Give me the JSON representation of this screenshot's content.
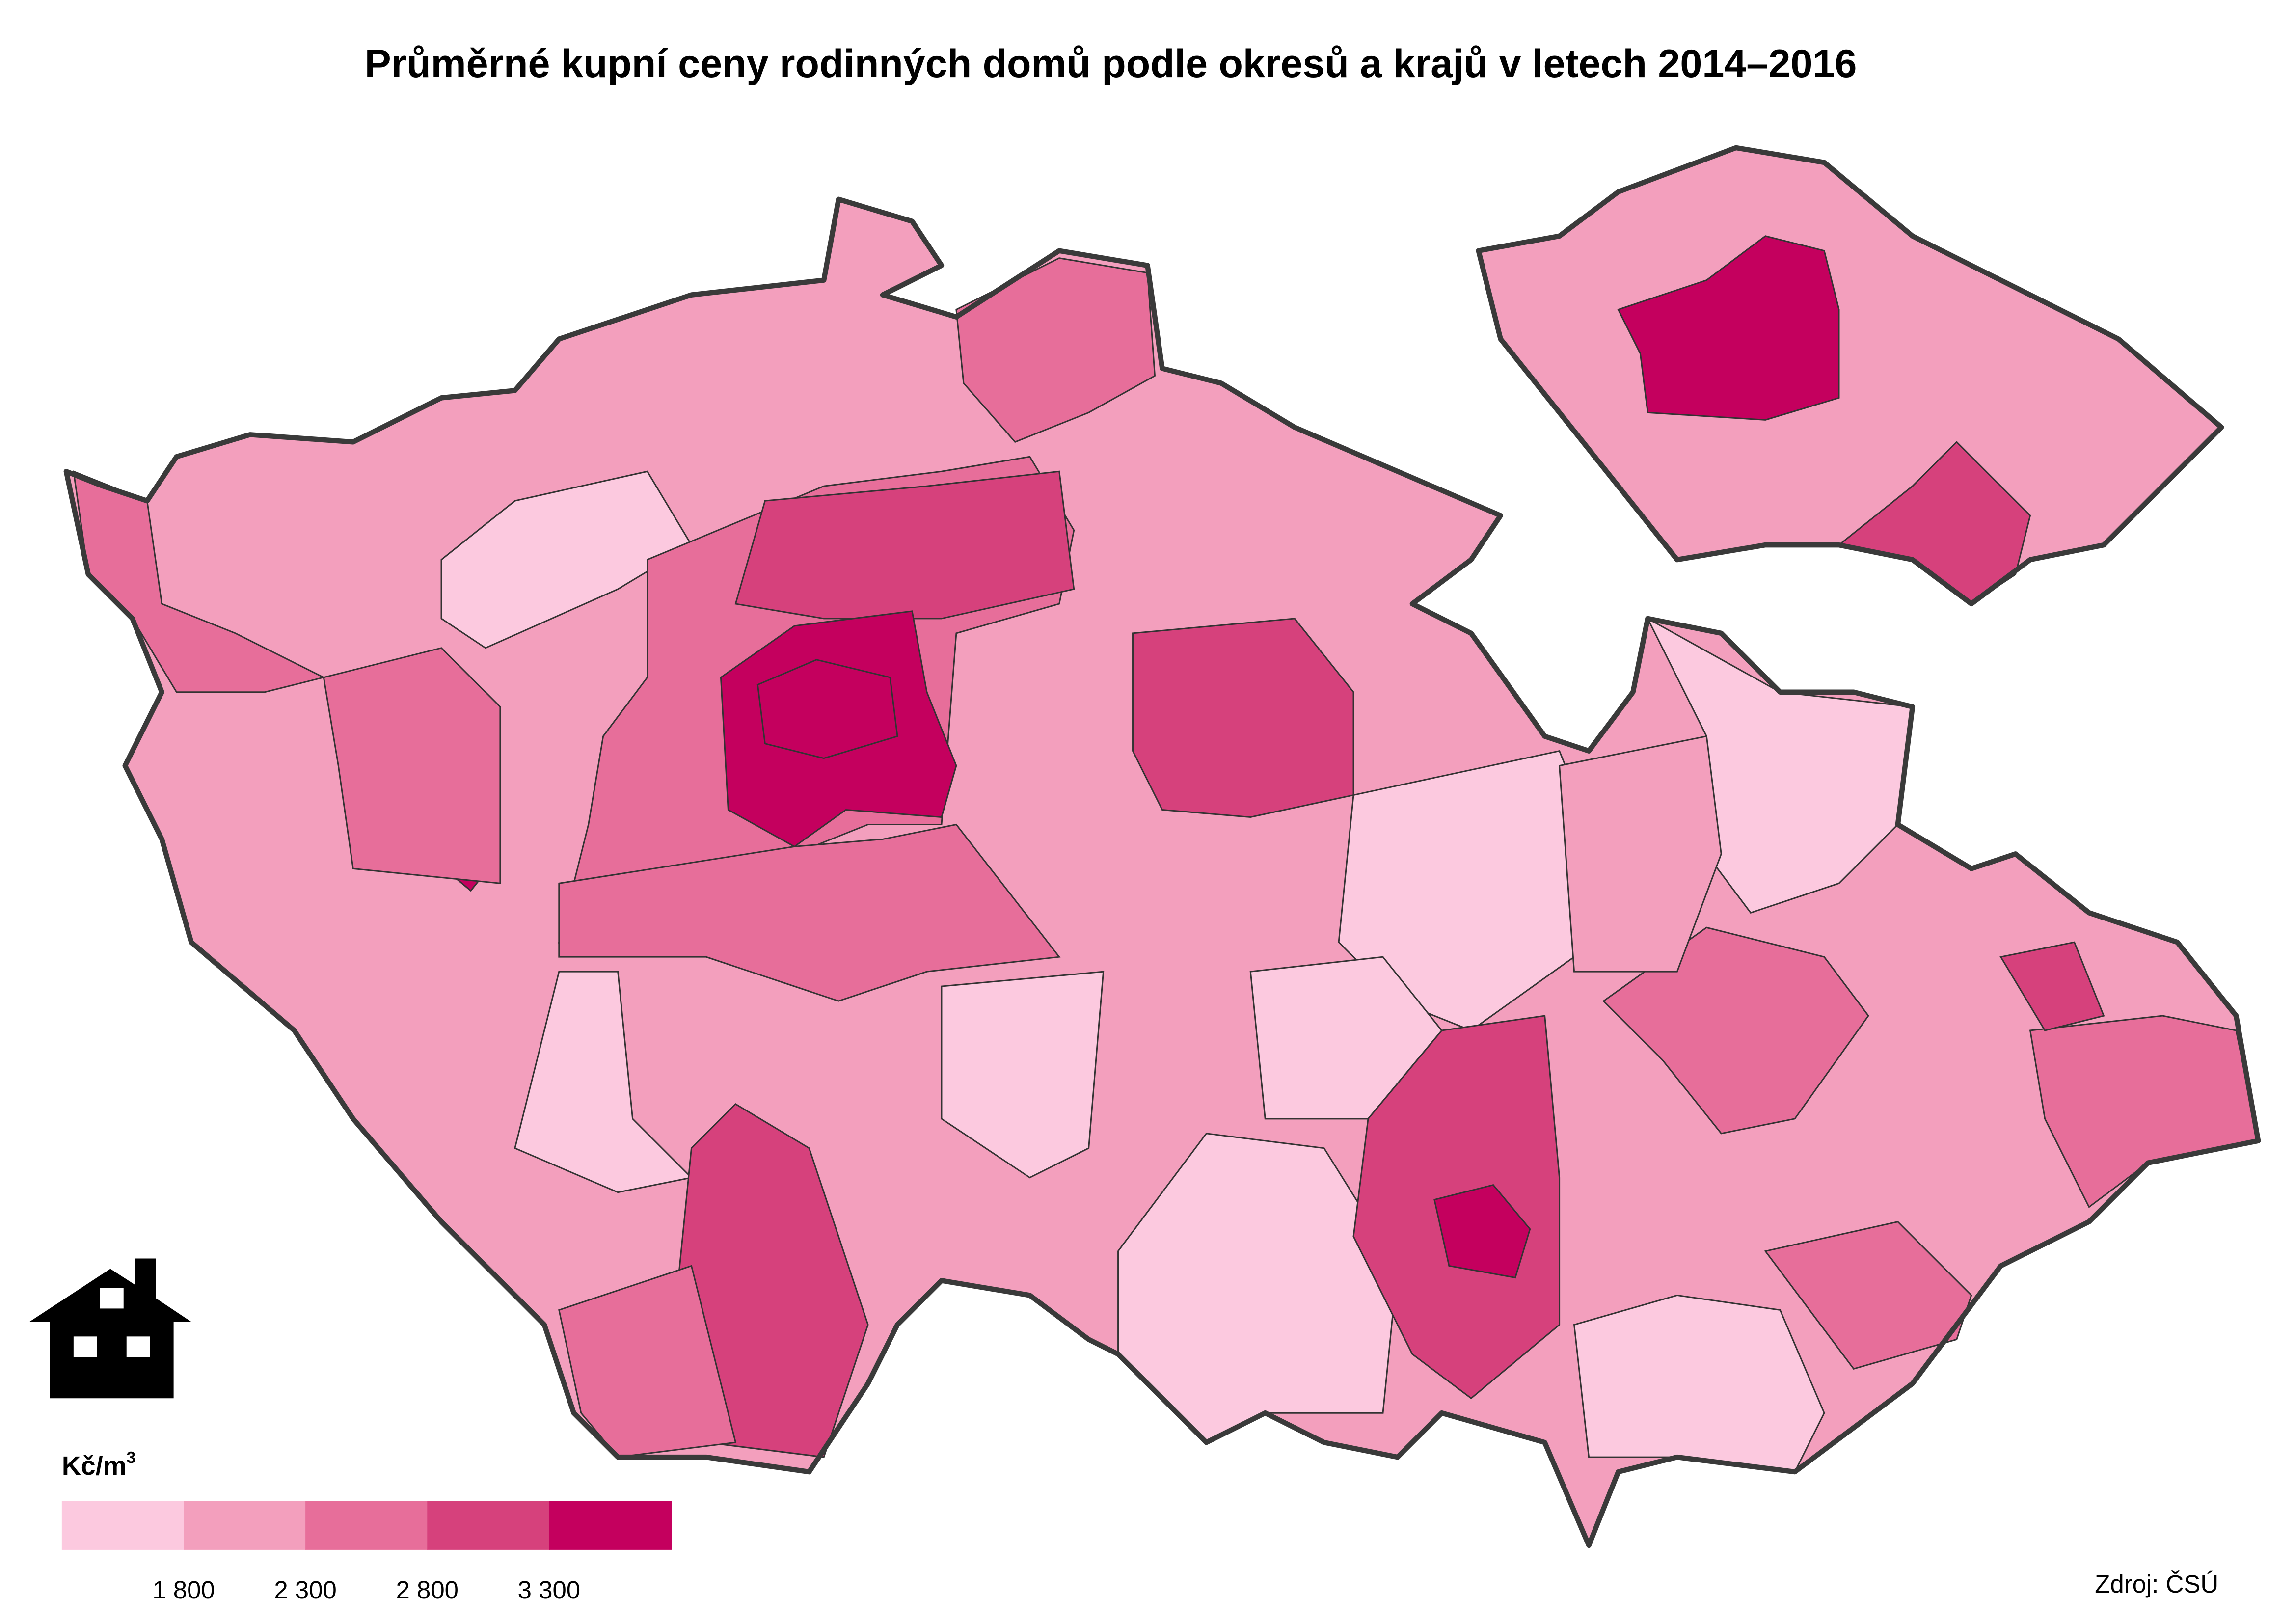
{
  "title": "Průměrné kupní ceny rodinných domů podle okresů a krajů v letech 2014–2016",
  "legend": {
    "unit": "Kč/m",
    "unit_power": "3",
    "colors": [
      "#fcc9df",
      "#f39fbd",
      "#e76e9a",
      "#d6417c",
      "#c4005e"
    ],
    "ticks": [
      {
        "value": 1800,
        "label": "1 800"
      },
      {
        "value": 2300,
        "label": "2 300"
      },
      {
        "value": 2800,
        "label": "2 800"
      },
      {
        "value": 3300,
        "label": "3 300"
      }
    ]
  },
  "source": "Zdroj: ČSÚ"
}
